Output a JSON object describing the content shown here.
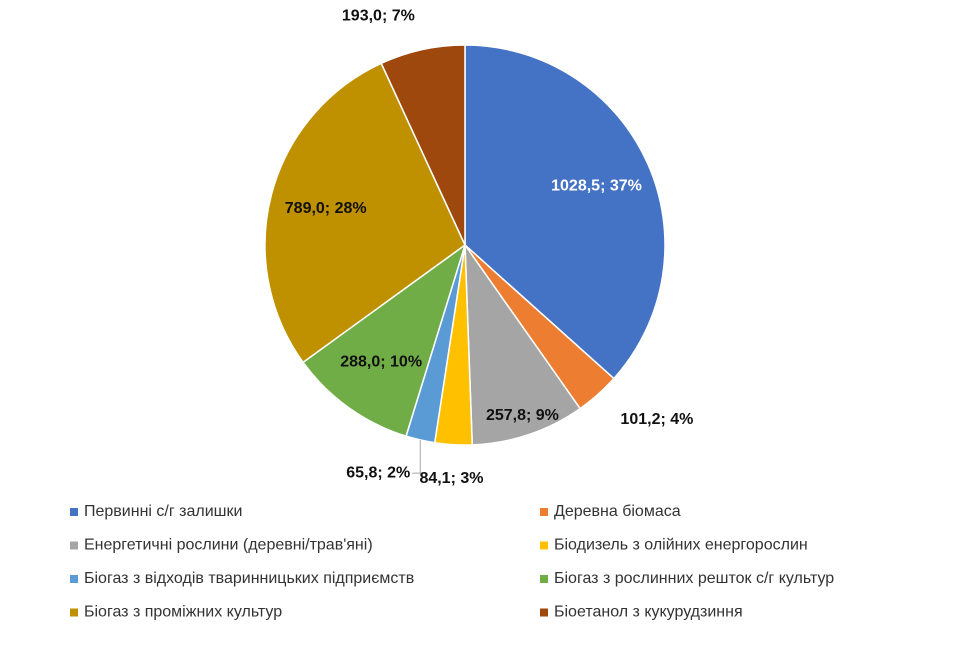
{
  "chart_data": {
    "type": "pie",
    "categories": [
      "Первинні с/г залишки",
      "Деревна біомаса",
      "Енергетичні рослини (деревні/трав'яні)",
      "Біодизель з олійних енергорослин",
      "Біогаз з відходів тваринницьких підприємств",
      "Біогаз з рослинних решток с/г культур",
      "Біогаз з проміжних культур",
      "Біоетанол з кукурудзиння"
    ],
    "values": [
      1028.5,
      101.2,
      257.8,
      84.1,
      65.8,
      288.0,
      789.0,
      193.0
    ],
    "value_labels": [
      "1028,5; 37%",
      "101,2; 4%",
      "257,8; 9%",
      "84,1; 3%",
      "65,8; 2%",
      "288,0; 10%",
      "789,0; 28%",
      "193,0; 7%"
    ],
    "colors": [
      "#4472c4",
      "#ed7d31",
      "#a5a5a5",
      "#ffc000",
      "#5b9bd5",
      "#70ad47",
      "#bf9000",
      "#9e480e"
    ],
    "legend": "bottom"
  }
}
